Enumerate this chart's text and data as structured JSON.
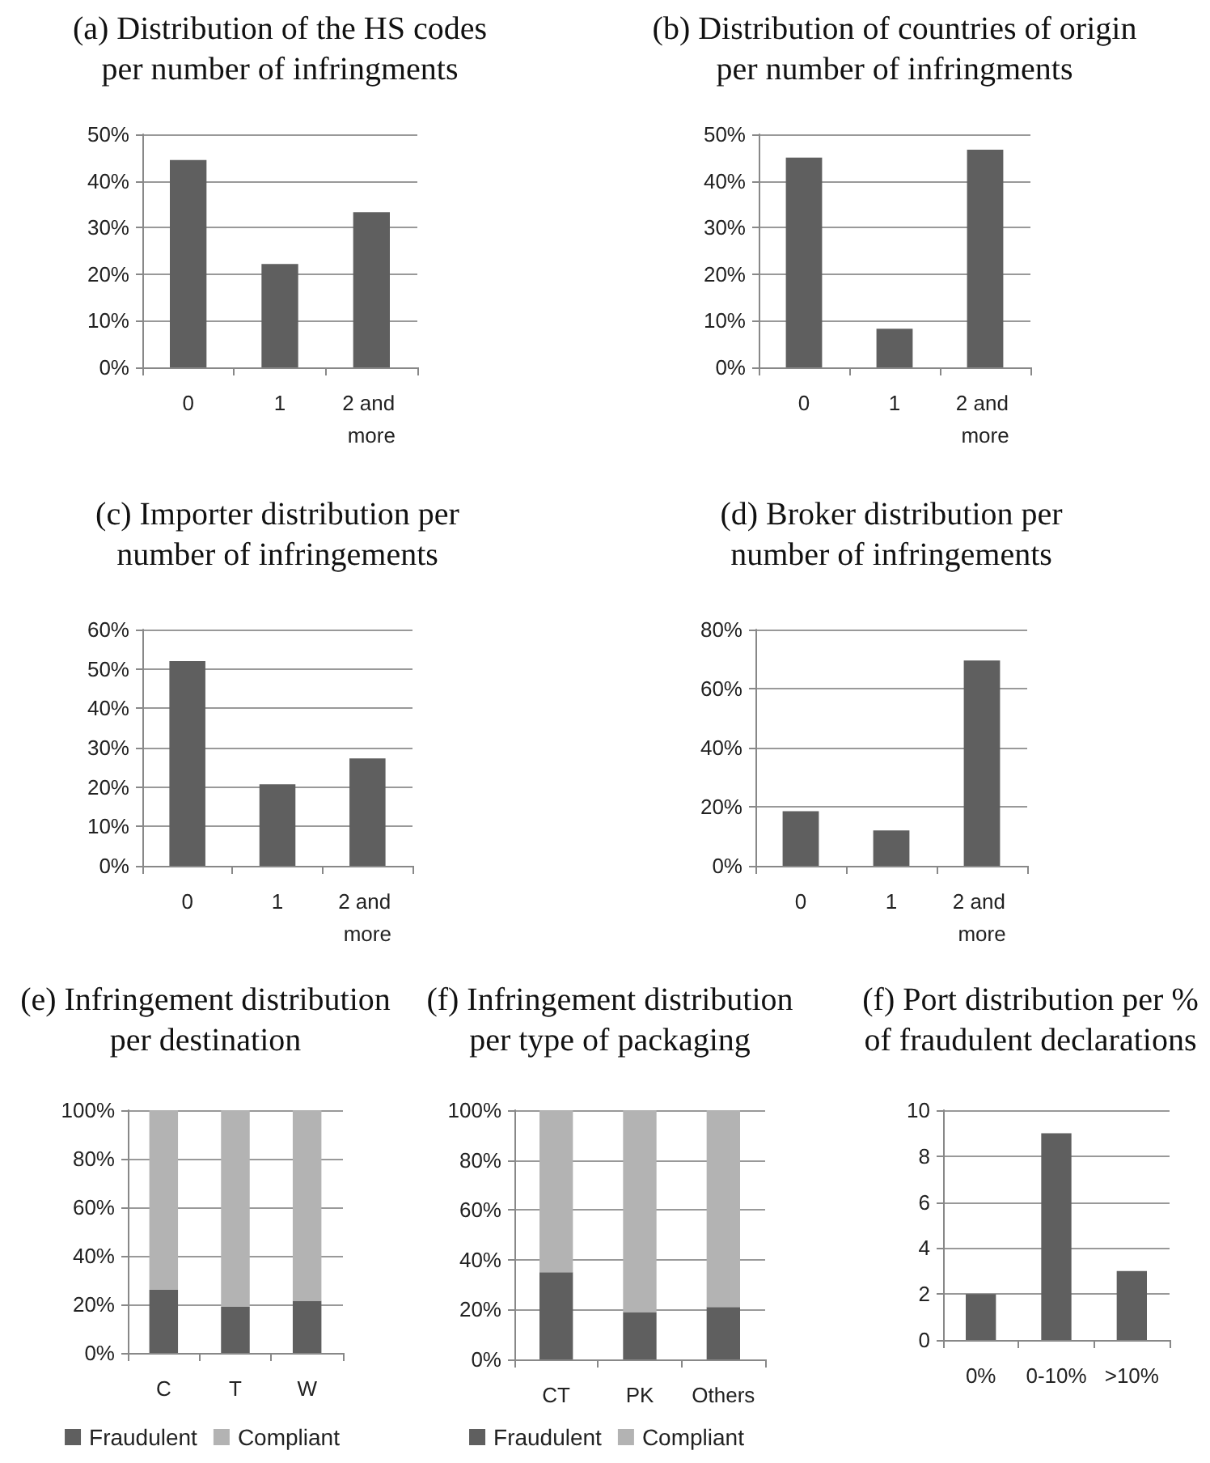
{
  "chart_data": [
    {
      "type": "bar",
      "title": "(a) Distribution of the HS codes per number of infringments",
      "categories": [
        "0",
        "1",
        "2 and more"
      ],
      "values": [
        44.5,
        22.2,
        33.3
      ],
      "color": "#5f5f5f",
      "ylim": [
        0,
        50
      ],
      "yticks": [
        {
          "value": 0,
          "label": "0%"
        },
        {
          "value": 10,
          "label": "10%"
        },
        {
          "value": 20,
          "label": "20%"
        },
        {
          "value": 30,
          "label": "30%"
        },
        {
          "value": 40,
          "label": "40%"
        },
        {
          "value": 50,
          "label": "50%"
        }
      ],
      "grid": "y"
    },
    {
      "type": "bar",
      "title": "(b) Distribution of countries of origin per number of infringments",
      "categories": [
        "0",
        "1",
        "2 and more"
      ],
      "values": [
        45,
        8.3,
        46.7
      ],
      "color": "#5f5f5f",
      "ylim": [
        0,
        50
      ],
      "yticks": [
        {
          "value": 0,
          "label": "0%"
        },
        {
          "value": 10,
          "label": "10%"
        },
        {
          "value": 20,
          "label": "20%"
        },
        {
          "value": 30,
          "label": "30%"
        },
        {
          "value": 40,
          "label": "40%"
        },
        {
          "value": 50,
          "label": "50%"
        }
      ],
      "grid": "y"
    },
    {
      "type": "bar",
      "title": "(c) Importer distribution per number of infringements",
      "categories": [
        "0",
        "1",
        "2 and more"
      ],
      "values": [
        52,
        20.7,
        27.3
      ],
      "color": "#5f5f5f",
      "ylim": [
        0,
        60
      ],
      "yticks": [
        {
          "value": 0,
          "label": "0%"
        },
        {
          "value": 10,
          "label": "10%"
        },
        {
          "value": 20,
          "label": "20%"
        },
        {
          "value": 30,
          "label": "30%"
        },
        {
          "value": 40,
          "label": "40%"
        },
        {
          "value": 50,
          "label": "50%"
        },
        {
          "value": 60,
          "label": "60%"
        }
      ],
      "grid": "y"
    },
    {
      "type": "bar",
      "title": "(d) Broker distribution per number of infringements",
      "categories": [
        "0",
        "1",
        "2 and more"
      ],
      "values": [
        18.5,
        12,
        69.5
      ],
      "color": "#5f5f5f",
      "ylim": [
        0,
        80
      ],
      "yticks": [
        {
          "value": 0,
          "label": "0%"
        },
        {
          "value": 20,
          "label": "20%"
        },
        {
          "value": 40,
          "label": "40%"
        },
        {
          "value": 60,
          "label": "60%"
        },
        {
          "value": 80,
          "label": "80%"
        }
      ],
      "grid": "y"
    },
    {
      "type": "bar",
      "title": "(e) Infringement distribution per destination",
      "categories": [
        "C",
        "T",
        "W"
      ],
      "stacked": true,
      "series": [
        {
          "name": "Fraudulent",
          "color": "#5f5f5f",
          "values": [
            26,
            19,
            21.5
          ]
        },
        {
          "name": "Compliant",
          "color": "#b3b3b3",
          "values": [
            74,
            81,
            78.5
          ]
        }
      ],
      "ylim": [
        0,
        100
      ],
      "yticks": [
        {
          "value": 0,
          "label": "0%"
        },
        {
          "value": 20,
          "label": "20%"
        },
        {
          "value": 40,
          "label": "40%"
        },
        {
          "value": 60,
          "label": "60%"
        },
        {
          "value": 80,
          "label": "80%"
        },
        {
          "value": 100,
          "label": "100%"
        }
      ],
      "grid": "y",
      "legend": "bottom"
    },
    {
      "type": "bar",
      "title": "(f) Infringement distribution per type of packaging",
      "categories": [
        "CT",
        "PK",
        "Others"
      ],
      "stacked": true,
      "series": [
        {
          "name": "Fraudulent",
          "color": "#5f5f5f",
          "values": [
            35,
            19,
            21
          ]
        },
        {
          "name": "Compliant",
          "color": "#b3b3b3",
          "values": [
            65,
            81,
            79
          ]
        }
      ],
      "ylim": [
        0,
        100
      ],
      "yticks": [
        {
          "value": 0,
          "label": "0%"
        },
        {
          "value": 20,
          "label": "20%"
        },
        {
          "value": 40,
          "label": "40%"
        },
        {
          "value": 60,
          "label": "60%"
        },
        {
          "value": 80,
          "label": "80%"
        },
        {
          "value": 100,
          "label": "100%"
        }
      ],
      "grid": "y",
      "legend": "bottom"
    },
    {
      "type": "bar",
      "title": "(f) Port distribution per % of fraudulent declarations",
      "categories": [
        "0%",
        "0-10%",
        ">10%"
      ],
      "values": [
        2,
        9,
        3
      ],
      "color": "#5f5f5f",
      "ylim": [
        0,
        10
      ],
      "yticks": [
        0,
        2,
        4,
        6,
        8,
        10
      ],
      "grid": "y"
    }
  ]
}
